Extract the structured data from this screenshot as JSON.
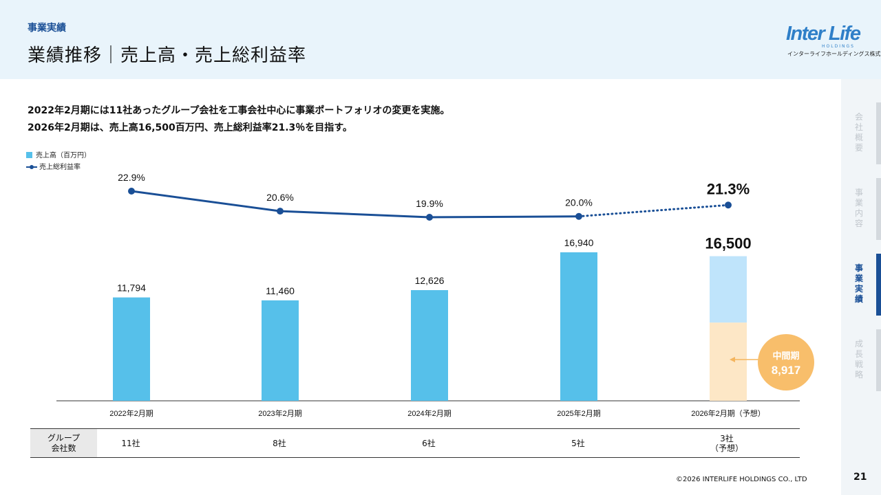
{
  "header": {
    "section_label": "事業実績",
    "title": "業績推移｜売上高・売上総利益率",
    "logo": {
      "main": "Inter Life",
      "sub": "HOLDINGS",
      "jp": "インターライフホールディングス株式会社"
    }
  },
  "sidebar": {
    "items": [
      {
        "label": "会社概要",
        "active": false
      },
      {
        "label": "事業内容",
        "active": false
      },
      {
        "label": "事業実績",
        "active": true
      },
      {
        "label": "成長戦略",
        "active": false
      }
    ]
  },
  "intro": {
    "line1": "2022年2月期には11社あったグループ会社を工事会社中心に事業ポートフォリオの変更を実施。",
    "line2": "2026年2月期は、売上高16,500百万円、売上総利益率21.3％を目指す。"
  },
  "chart_data": {
    "type": "bar+line",
    "categories": [
      "2022年2月期",
      "2023年2月期",
      "2024年2月期",
      "2025年2月期",
      "2026年2月期（予想）"
    ],
    "series": [
      {
        "name": "売上高（百万円）",
        "type": "bar",
        "values": [
          11794,
          11460,
          12626,
          16940,
          16500
        ],
        "labels": [
          "11,794",
          "11,460",
          "12,626",
          "16,940",
          "16,500"
        ]
      },
      {
        "name": "売上総利益率",
        "type": "line",
        "values": [
          22.9,
          20.6,
          19.9,
          20.0,
          21.3
        ],
        "labels": [
          "22.9%",
          "20.6%",
          "19.9%",
          "20.0%",
          "21.3%"
        ]
      }
    ],
    "forecast_index": 4,
    "interim": {
      "title": "中間期",
      "value": 8917,
      "label": "8,917"
    },
    "colors": {
      "bar": "#56c0ea",
      "forecast_upper": "#bfe4fb",
      "forecast_lower": "#fde7c6",
      "line": "#1a4f96",
      "interim_badge": "#f8be6b"
    }
  },
  "table": {
    "header": "グループ\n会社数",
    "cells": [
      "11社",
      "8社",
      "6社",
      "5社",
      "3社\n（予想）"
    ]
  },
  "footer": {
    "copyright": "©2026 INTERLIFE HOLDINGS CO., LTD",
    "page_number": "21"
  }
}
